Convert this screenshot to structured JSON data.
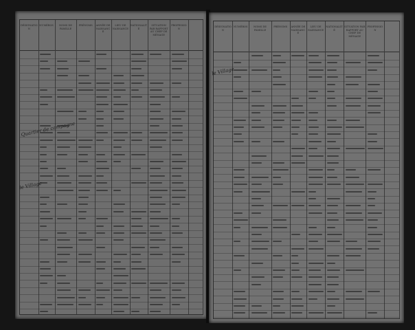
{
  "document": {
    "type": "census register (two facing pages)",
    "headers": [
      "DÉSIGNATION",
      "NUMÉROS",
      "NOMS DE FAMILLE",
      "PRÉNOMS",
      "ANNÉE DE NAISSANCE",
      "LIEU DE NAISSANCE",
      "NATIONALITÉ",
      "SITUATION PAR RAPPORT AU CHEF DE MÉNAGE",
      "PROFESSION",
      ""
    ],
    "left_margin_notes": [
      "Quartier de campagne",
      "le Village"
    ],
    "right_margin_notes": [
      "le Village"
    ]
  }
}
